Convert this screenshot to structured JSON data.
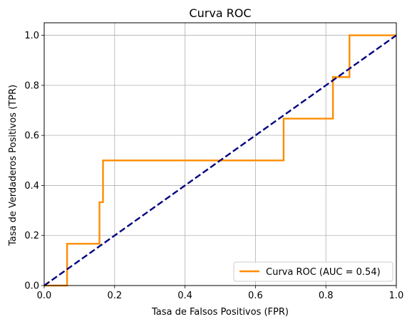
{
  "chart_data": {
    "type": "line",
    "title": "Curva ROC",
    "xlabel": "Tasa de Falsos Positivos (FPR)",
    "ylabel": "Tasa de Verdaderos Positivos (TPR)",
    "xlim": [
      0.0,
      1.0
    ],
    "ylim": [
      0.0,
      1.05
    ],
    "x_ticks": [
      "0.0",
      "0.2",
      "0.4",
      "0.6",
      "0.8",
      "1.0"
    ],
    "y_ticks": [
      "0.0",
      "0.2",
      "0.4",
      "0.6",
      "0.8",
      "1.0"
    ],
    "grid": true,
    "legend_position": "lower right",
    "series": [
      {
        "name": "Curva ROC (AUC = 0.54)",
        "color": "#ff8c00",
        "style": "solid",
        "x": [
          0.0,
          0.065,
          0.065,
          0.157,
          0.157,
          0.167,
          0.167,
          0.68,
          0.68,
          0.82,
          0.82,
          0.867,
          0.867,
          1.0
        ],
        "y": [
          0.0,
          0.0,
          0.167,
          0.167,
          0.333,
          0.333,
          0.5,
          0.5,
          0.667,
          0.667,
          0.833,
          0.833,
          1.0,
          1.0
        ]
      },
      {
        "color": "#000080",
        "style": "dashed",
        "x": [
          0.0,
          1.0
        ],
        "y": [
          0.0,
          1.0
        ]
      }
    ]
  }
}
